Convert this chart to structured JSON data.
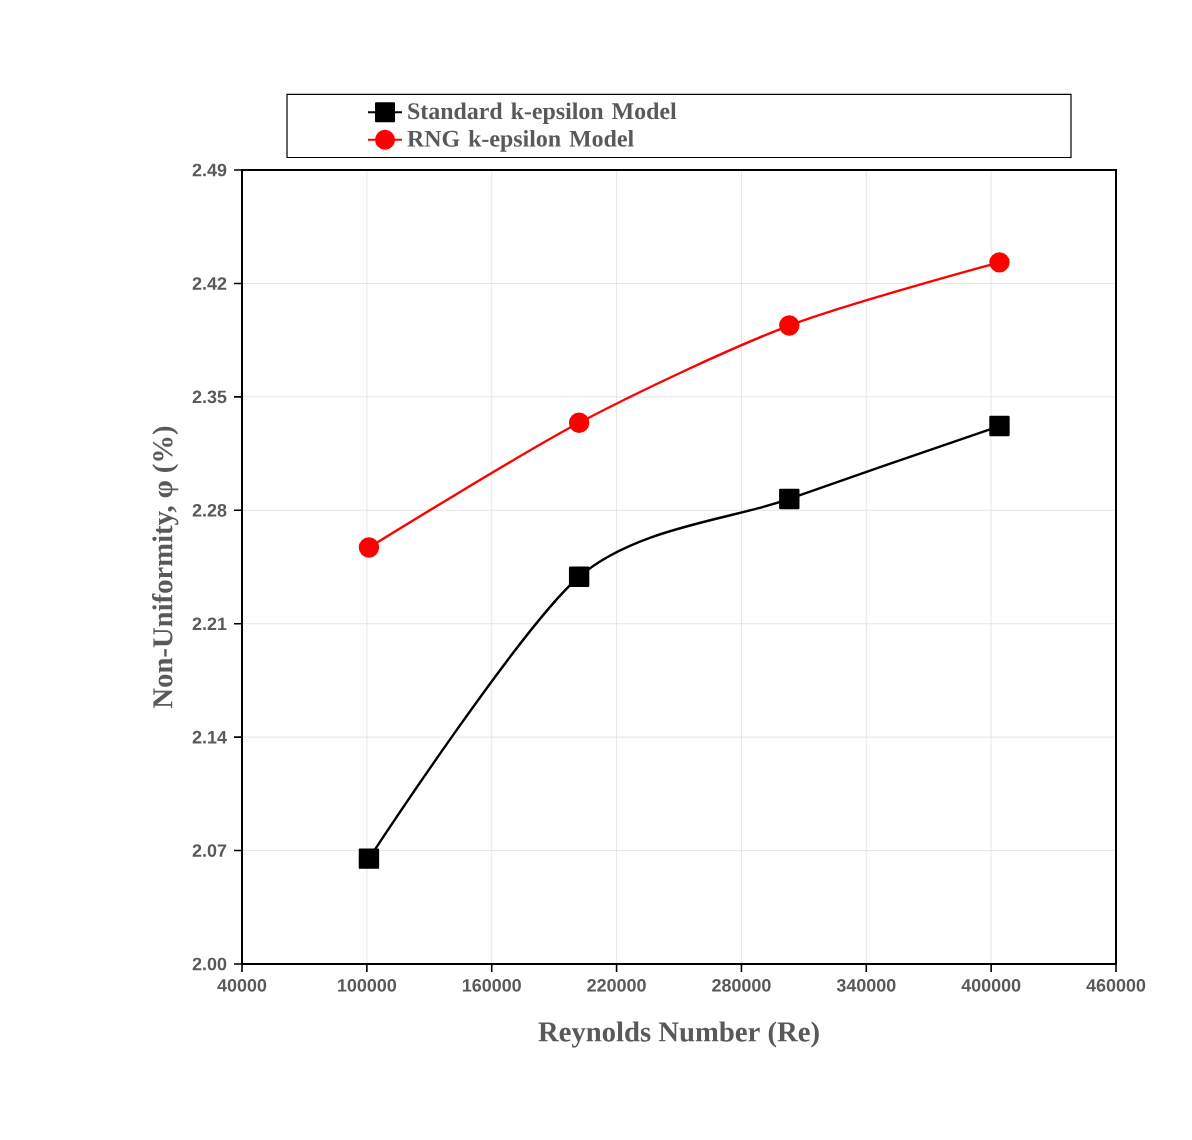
{
  "chart_data": {
    "type": "line",
    "xlabel": "Reynolds Number (Re)",
    "ylabel": "Non-Uniformity, φ (%)",
    "xlim": [
      40000,
      460000
    ],
    "xticks": [
      40000,
      100000,
      160000,
      220000,
      280000,
      340000,
      400000,
      460000
    ],
    "ylim": [
      2.0,
      2.49
    ],
    "yticks": [
      {
        "value": 2.0,
        "label": "2.00"
      },
      2.07,
      2.14,
      2.21,
      2.28,
      2.35,
      2.42,
      2.49
    ],
    "grid": true,
    "legend": "top",
    "series": [
      {
        "name": "Standard k-epsilon Model",
        "color": "#000000",
        "marker": "square",
        "x": [
          101000,
          202000,
          303000,
          404000
        ],
        "values": [
          2.065,
          2.239,
          2.287,
          2.332
        ]
      },
      {
        "name": "RNG k-epsilon Model",
        "color": "#ff0000",
        "marker": "circle",
        "x": [
          101000,
          202000,
          303000,
          404000
        ],
        "values": [
          2.257,
          2.334,
          2.394,
          2.433
        ]
      }
    ]
  }
}
